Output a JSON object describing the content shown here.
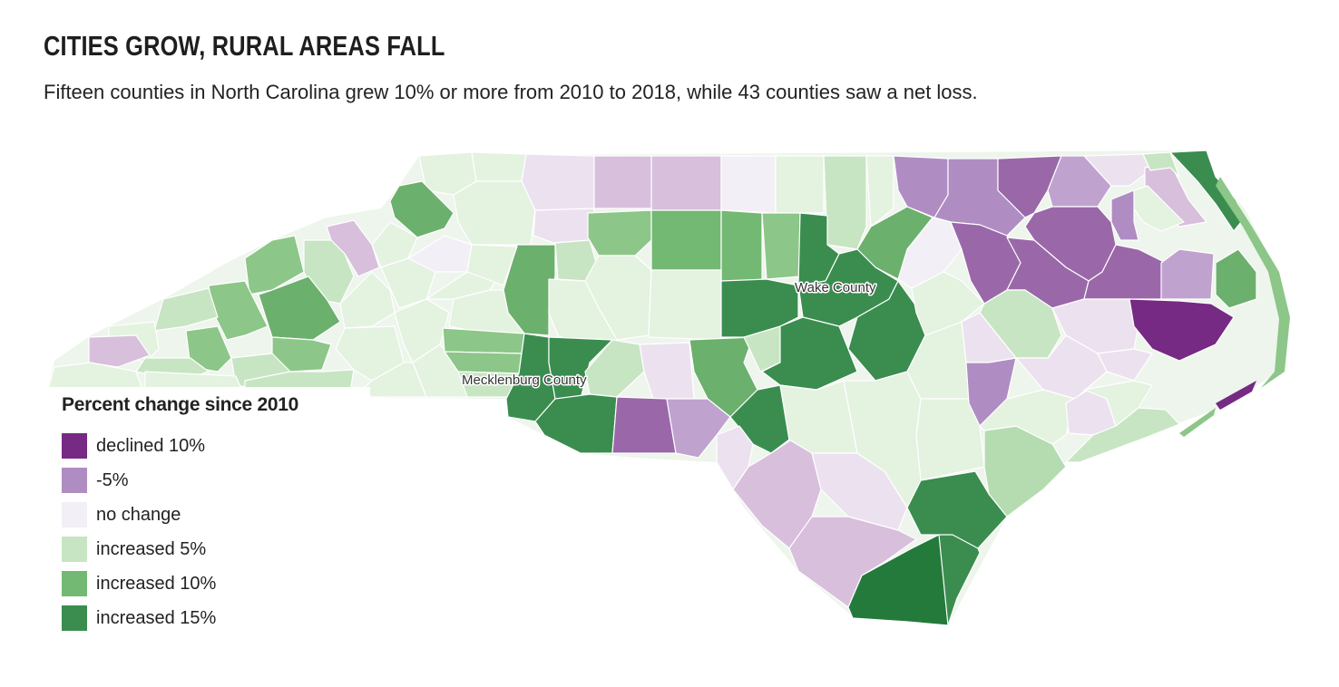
{
  "header": {
    "title": "CITIES GROW, RURAL AREAS FALL",
    "subtitle": "Fifteen counties in North Carolina grew 10% or more from 2010 to 2018, while 43 counties saw a net loss."
  },
  "labels": {
    "wake": "Wake County",
    "mecklenburg": "Mecklenburg County"
  },
  "legend": {
    "title": "Percent change since 2010",
    "items": [
      {
        "label": "declined 10%",
        "color": "#762a83"
      },
      {
        "label": "-5%",
        "color": "#af8dc3"
      },
      {
        "label": "no change",
        "color": "#f3eff6"
      },
      {
        "label": "increased 5%",
        "color": "#c7e5c2"
      },
      {
        "label": "increased 10%",
        "color": "#73b873"
      },
      {
        "label": "increased 15%",
        "color": "#3a8d4f"
      }
    ]
  },
  "colors": {
    "dark_purple": "#762a83",
    "purple": "#9a68a8",
    "mid_purple": "#af8dc3",
    "light_purple": "#d8bfdc",
    "pale_purple": "#ece2ef",
    "neutral": "#f3eff6",
    "pale_green": "#e4f2e0",
    "light_green": "#c7e5c2",
    "green": "#8cc688",
    "mid_green": "#6bb06d",
    "dark_green": "#3a8d4f",
    "darkest_green": "#237a3b"
  }
}
